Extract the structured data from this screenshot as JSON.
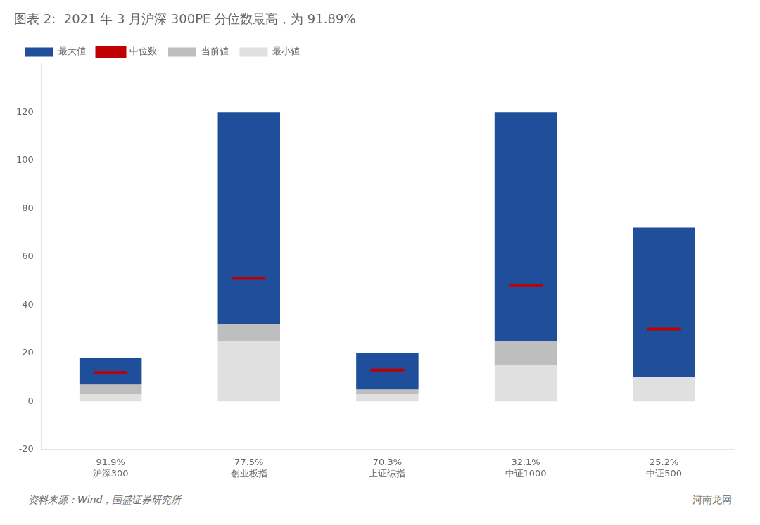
{
  "chart_data": {
    "type": "bar",
    "title": "图表 2:  2021 年 3 月沪深 300PE 分位数最高，为 91.89%",
    "categories": [
      "沪深300",
      "创业板指",
      "上证综指",
      "中证1000",
      "中证500"
    ],
    "percentiles": [
      "91.9%",
      "77.5%",
      "70.3%",
      "32.1%",
      "25.2%"
    ],
    "series": [
      {
        "name": "最大値",
        "color": "#1F4E9B",
        "values": [
          18,
          120,
          20,
          120,
          72
        ]
      },
      {
        "name": "中位数",
        "color": "#C00000",
        "type": "scatter",
        "marker": "line",
        "values": [
          12,
          51,
          13,
          48,
          30
        ]
      },
      {
        "name": "当前値",
        "color": "#BEBEBE",
        "values": [
          7,
          32,
          5,
          25,
          10
        ]
      },
      {
        "name": "最小値",
        "color": "#E0E0E0",
        "values": [
          3,
          25,
          3,
          15,
          12
        ]
      }
    ],
    "ylim": [
      -20,
      140
    ],
    "yticks": [
      -20,
      0,
      20,
      40,
      60,
      80,
      100,
      120
    ],
    "grid": false,
    "legend": "upper left",
    "source": "资料来源：Wind，国盛证券研究所",
    "watermark": "河南龙网"
  }
}
